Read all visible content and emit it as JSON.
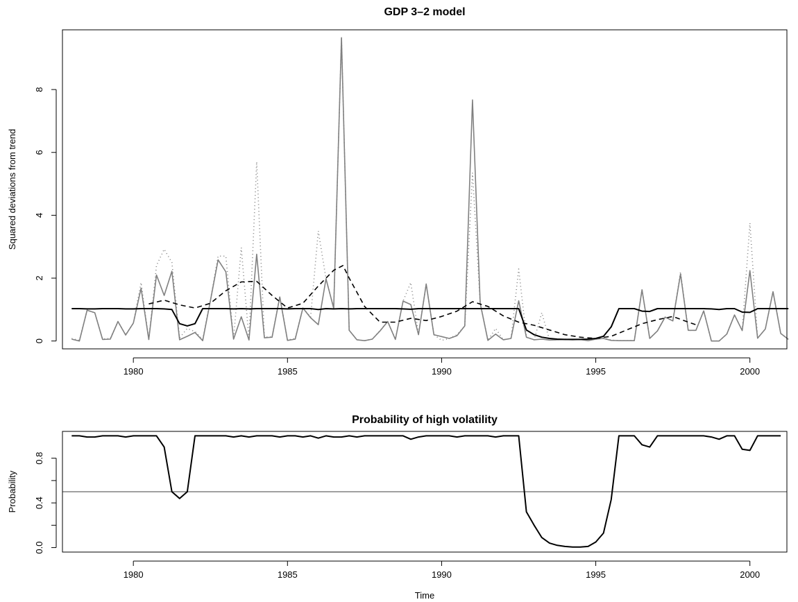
{
  "chart_data": [
    {
      "type": "line",
      "title": "GDP 3–2 model",
      "xlabel": "",
      "ylabel": "Squared deviations from trend",
      "xlim": [
        1977.7,
        2001.2
      ],
      "ylim": [
        -0.25,
        9.9
      ],
      "x_ticks": [
        1980,
        1985,
        1990,
        1995,
        2000
      ],
      "x_tick_labels": [
        "1980",
        "1985",
        "1990",
        "1995",
        "2000"
      ],
      "y_ticks": [
        0,
        2,
        4,
        6,
        8
      ],
      "y_tick_labels": [
        "0",
        "2",
        "4",
        "6",
        "8"
      ],
      "x_start": 1978.0,
      "x_step": 0.25,
      "series": [
        {
          "color": "#808080",
          "dash": "solid",
          "values": [
            0.06,
            0.0,
            0.98,
            0.9,
            0.05,
            0.06,
            0.62,
            0.19,
            0.57,
            1.68,
            0.05,
            2.1,
            1.45,
            2.22,
            0.04,
            0.15,
            0.27,
            0.01,
            1.28,
            2.58,
            2.2,
            0.06,
            0.77,
            0.03,
            2.76,
            0.1,
            0.12,
            1.4,
            0.02,
            0.06,
            1.05,
            0.74,
            0.52,
            1.98,
            1.04,
            9.65,
            0.34,
            0.04,
            0.01,
            0.06,
            0.32,
            0.62,
            0.05,
            1.27,
            1.16,
            0.2,
            1.81,
            0.2,
            0.14,
            0.08,
            0.17,
            0.48,
            7.67,
            1.2,
            0.02,
            0.22,
            0.04,
            0.08,
            1.28,
            0.12,
            0.04,
            0.06,
            0.03,
            0.04,
            0.05,
            0.04,
            0.05,
            0.01,
            0.06,
            0.08,
            0.02,
            0.01,
            0.01,
            0.01,
            1.63,
            0.08,
            0.32,
            0.76,
            0.64,
            2.13,
            0.34,
            0.34,
            0.96,
            0.0,
            0.0,
            0.22,
            0.83,
            0.33,
            2.24,
            0.09,
            0.38,
            1.57,
            0.24,
            0.05
          ]
        },
        {
          "color": "#808080",
          "dash": "dotted",
          "values": [
            0.08,
            0.02,
            0.98,
            0.9,
            0.06,
            0.08,
            0.62,
            0.2,
            0.57,
            1.86,
            0.05,
            2.4,
            2.92,
            2.5,
            0.1,
            0.4,
            0.3,
            0.05,
            1.3,
            2.7,
            2.7,
            0.07,
            2.97,
            0.05,
            5.7,
            0.13,
            0.13,
            1.42,
            0.03,
            0.08,
            1.05,
            0.76,
            3.5,
            1.98,
            1.04,
            9.65,
            0.34,
            0.04,
            0.01,
            0.06,
            0.33,
            0.62,
            0.06,
            1.27,
            1.86,
            0.22,
            1.81,
            0.2,
            0.02,
            0.08,
            0.2,
            0.48,
            5.35,
            1.22,
            0.02,
            0.4,
            0.04,
            0.08,
            2.29,
            0.12,
            0.04,
            0.9,
            0.03,
            0.04,
            0.06,
            0.05,
            0.06,
            0.02,
            0.06,
            0.09,
            0.03,
            0.01,
            0.01,
            0.02,
            1.63,
            0.09,
            0.32,
            0.76,
            0.64,
            2.2,
            0.34,
            0.34,
            0.96,
            0.0,
            0.0,
            0.22,
            0.83,
            0.33,
            3.75,
            0.09,
            0.38,
            1.57,
            0.24,
            0.05
          ]
        },
        {
          "color": "#000000",
          "dash": "dashed",
          "x": [
            1980.5,
            1981.0,
            1981.5,
            1982.0,
            1982.5,
            1983.0,
            1983.5,
            1984.0,
            1984.5,
            1985.0,
            1985.5,
            1986.0,
            1986.5,
            1986.8,
            1987.0,
            1987.5,
            1988.0,
            1988.5,
            1989.0,
            1989.5,
            1990.0,
            1990.5,
            1991.0,
            1991.5,
            1992.0,
            1992.5,
            1993.0,
            1993.5,
            1994.0,
            1994.5,
            1995.0,
            1995.5,
            1996.0,
            1996.5,
            1997.0,
            1997.5,
            1998.0,
            1998.3
          ],
          "values": [
            1.18,
            1.3,
            1.15,
            1.05,
            1.2,
            1.6,
            1.88,
            1.9,
            1.45,
            1.05,
            1.2,
            1.75,
            2.25,
            2.4,
            2.0,
            1.1,
            0.6,
            0.6,
            0.72,
            0.65,
            0.78,
            0.95,
            1.25,
            1.1,
            0.8,
            0.6,
            0.5,
            0.35,
            0.2,
            0.12,
            0.08,
            0.15,
            0.35,
            0.55,
            0.68,
            0.78,
            0.6,
            0.5
          ]
        },
        {
          "color": "#000000",
          "dash": "solid",
          "values": [
            1.03,
            1.03,
            1.02,
            1.02,
            1.03,
            1.03,
            1.03,
            1.02,
            1.02,
            1.03,
            1.03,
            1.03,
            1.02,
            1.0,
            0.55,
            0.48,
            0.55,
            1.03,
            1.03,
            1.03,
            1.03,
            1.02,
            1.03,
            1.02,
            1.03,
            1.03,
            1.03,
            1.03,
            1.02,
            1.03,
            1.03,
            1.03,
            1.0,
            1.03,
            1.02,
            1.03,
            1.02,
            1.03,
            1.03,
            1.03,
            1.03,
            1.03,
            1.03,
            1.02,
            1.01,
            1.03,
            1.03,
            1.03,
            1.03,
            1.03,
            1.03,
            1.03,
            1.03,
            1.03,
            1.03,
            1.03,
            1.03,
            1.03,
            1.03,
            0.35,
            0.2,
            0.12,
            0.08,
            0.06,
            0.05,
            0.05,
            0.05,
            0.06,
            0.08,
            0.15,
            0.45,
            1.03,
            1.03,
            1.03,
            0.95,
            0.94,
            1.03,
            1.03,
            1.03,
            1.03,
            1.03,
            1.03,
            1.03,
            1.02,
            1.0,
            1.03,
            1.03,
            0.92,
            0.91,
            1.03,
            1.03,
            1.03,
            1.03,
            1.03
          ]
        }
      ]
    },
    {
      "type": "line",
      "title": "Probability of high volatility",
      "xlabel": "Time",
      "ylabel": "Probability",
      "xlim": [
        1977.7,
        2001.2
      ],
      "ylim": [
        -0.04,
        1.04
      ],
      "x_ticks": [
        1980,
        1985,
        1990,
        1995,
        2000
      ],
      "x_tick_labels": [
        "1980",
        "1985",
        "1990",
        "1995",
        "2000"
      ],
      "y_ticks": [
        0.0,
        0.2,
        0.4,
        0.6,
        0.8
      ],
      "y_tick_labels": [
        "0.0",
        "",
        "0.4",
        "",
        "0.8"
      ],
      "x_start": 1978.0,
      "x_step": 0.25,
      "reference_line": {
        "y": 0.5,
        "color": "#808080"
      },
      "series": [
        {
          "color": "#000000",
          "dash": "solid",
          "values": [
            1.0,
            1.0,
            0.99,
            0.99,
            1.0,
            1.0,
            1.0,
            0.99,
            1.0,
            1.0,
            1.0,
            1.0,
            0.9,
            0.5,
            0.44,
            0.5,
            1.0,
            1.0,
            1.0,
            1.0,
            1.0,
            0.99,
            1.0,
            0.99,
            1.0,
            1.0,
            1.0,
            0.99,
            1.0,
            1.0,
            0.99,
            1.0,
            0.98,
            1.0,
            0.99,
            0.99,
            1.0,
            0.99,
            1.0,
            1.0,
            1.0,
            1.0,
            1.0,
            1.0,
            0.97,
            0.99,
            1.0,
            1.0,
            1.0,
            1.0,
            0.99,
            1.0,
            1.0,
            1.0,
            1.0,
            0.99,
            1.0,
            1.0,
            1.0,
            0.32,
            0.2,
            0.09,
            0.04,
            0.02,
            0.01,
            0.005,
            0.005,
            0.01,
            0.05,
            0.13,
            0.43,
            1.0,
            1.0,
            1.0,
            0.92,
            0.9,
            1.0,
            1.0,
            1.0,
            1.0,
            1.0,
            1.0,
            1.0,
            0.99,
            0.97,
            1.0,
            1.0,
            0.88,
            0.87,
            1.0,
            1.0,
            1.0,
            1.0
          ]
        }
      ]
    }
  ]
}
